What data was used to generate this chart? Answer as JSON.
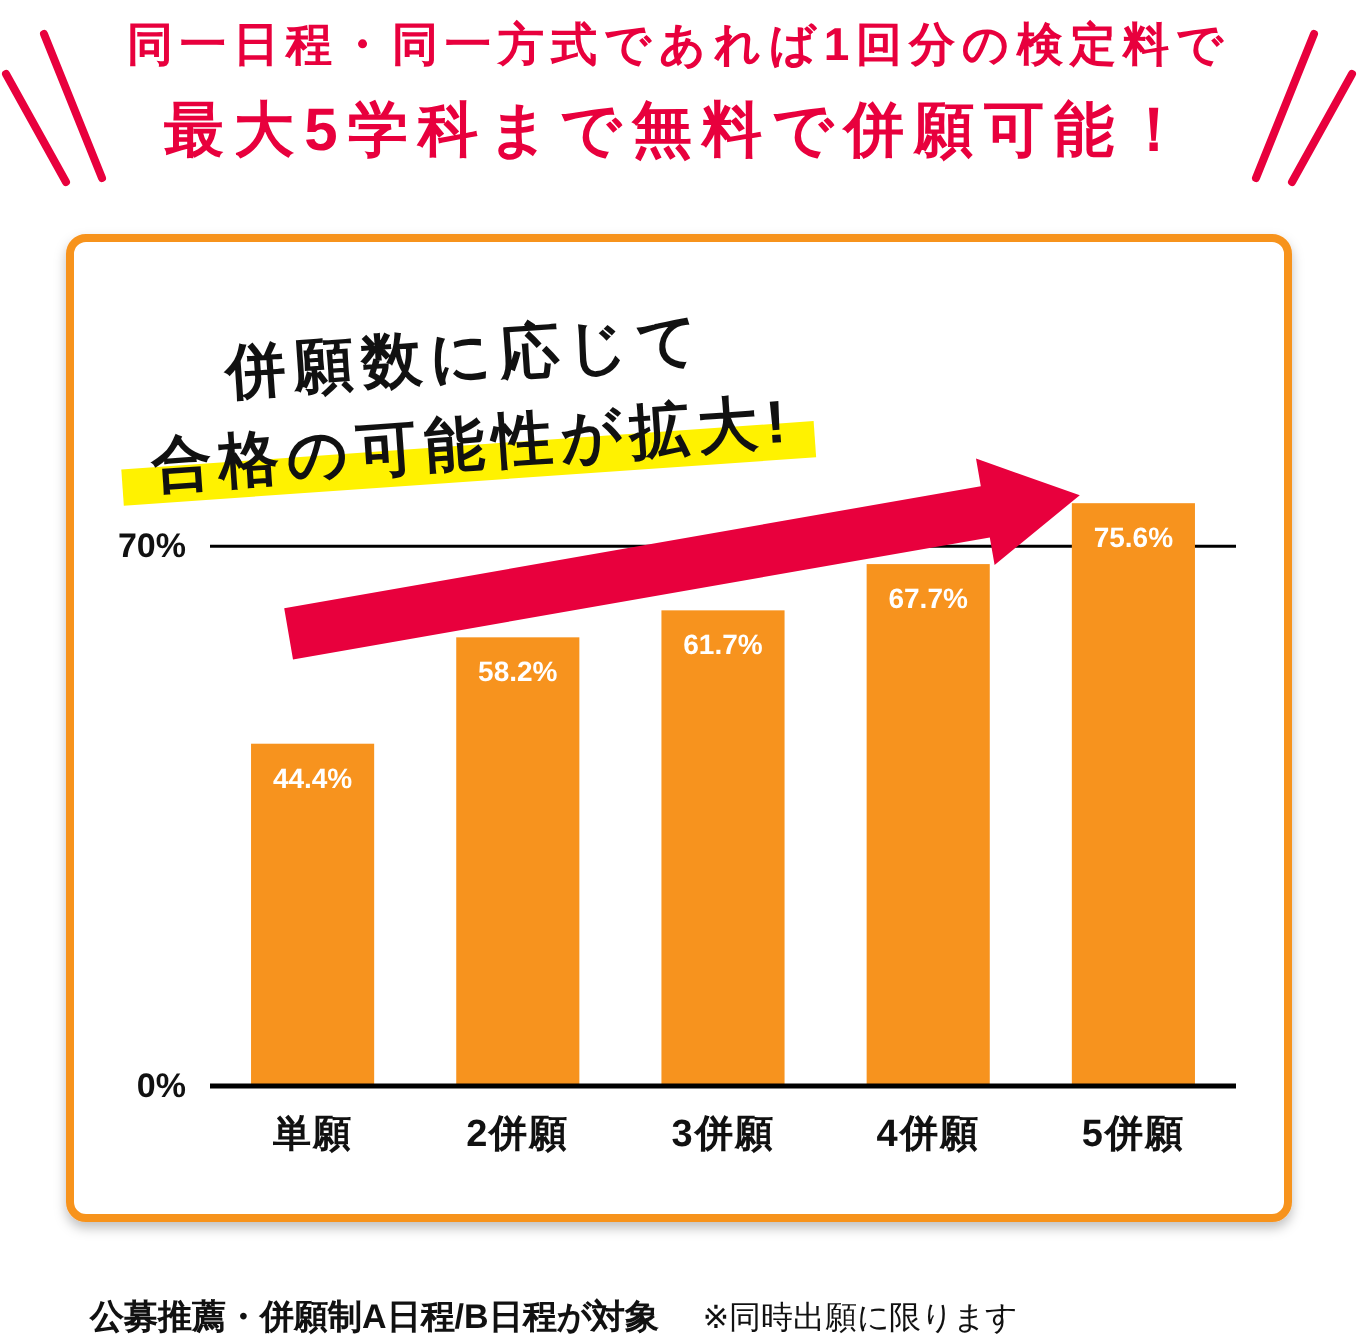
{
  "chart_data": {
    "type": "bar",
    "title": "同一日程・同一方式であれば1回分の検定料で",
    "subtitle": "最大5学科まで無料で併願可能！",
    "categories": [
      "単願",
      "2併願",
      "3併願",
      "4併願",
      "5併願"
    ],
    "values": [
      44.4,
      58.2,
      61.7,
      67.7,
      75.6
    ],
    "color": "#f7931e",
    "value_labels": [
      "44.4%",
      "58.2%",
      "61.7%",
      "67.7%",
      "75.6%"
    ],
    "ylim": [
      0,
      110
    ],
    "yticks": [
      {
        "value": 0,
        "label": "0%"
      },
      {
        "value": 70,
        "label": "70%"
      }
    ],
    "grid": "y",
    "annotations": [
      "併願数に応じて",
      "合格の可能性が拡大!",
      "公募推薦・併願制A日程/B日程が対象",
      "※同時出願に限ります"
    ]
  }
}
